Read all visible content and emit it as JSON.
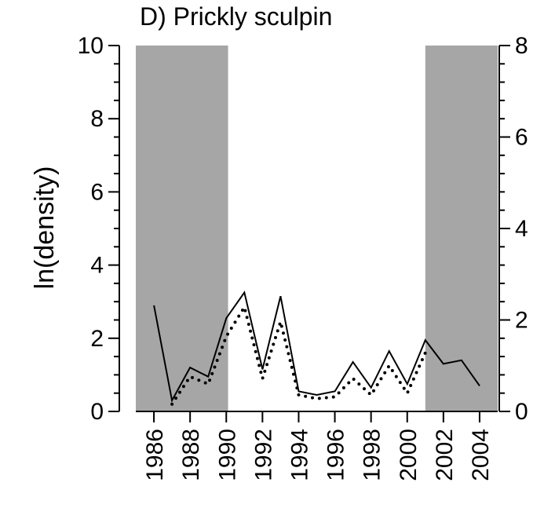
{
  "chart_data": {
    "type": "line",
    "title": "D) Prickly sculpin",
    "ylabel": "ln(density)",
    "xlabel": "",
    "xlim": [
      1985,
      2005
    ],
    "ylim": [
      0,
      10
    ],
    "y2lim": [
      0,
      8
    ],
    "x_ticks": [
      "1986",
      "1988",
      "1990",
      "1992",
      "1994",
      "1996",
      "1998",
      "2000",
      "2002",
      "2004"
    ],
    "y_ticks": [
      "0",
      "2",
      "4",
      "6",
      "8",
      "10"
    ],
    "y2_ticks": [
      "0",
      "2",
      "4",
      "6",
      "8"
    ],
    "shaded_periods": [
      [
        1985,
        1990.1
      ],
      [
        2001,
        2005
      ]
    ],
    "shade_color": "#a6a6a6",
    "grid": false,
    "series": [
      {
        "style": "solid",
        "axis": "left",
        "x": [
          1986,
          1987,
          1988,
          1989,
          1990,
          1991,
          1992,
          1993,
          1994,
          1995,
          1996,
          1997,
          1998,
          1999,
          2000,
          2001,
          2002,
          2003,
          2004
        ],
        "values": [
          2.9,
          0.3,
          1.2,
          0.95,
          2.55,
          3.25,
          1.15,
          3.15,
          0.55,
          0.45,
          0.55,
          1.35,
          0.65,
          1.65,
          0.75,
          1.95,
          1.3,
          1.4,
          0.7
        ]
      },
      {
        "style": "dotted",
        "axis": "left",
        "x": [
          1987,
          1988,
          1989,
          1990,
          1991,
          1992,
          1993,
          1994,
          1995,
          1996,
          1997,
          1998,
          1999,
          2000,
          2001
        ],
        "values": [
          0.2,
          0.95,
          0.75,
          2.05,
          2.85,
          0.9,
          2.45,
          0.45,
          0.35,
          0.4,
          0.9,
          0.45,
          1.25,
          0.5,
          1.6
        ]
      }
    ]
  }
}
